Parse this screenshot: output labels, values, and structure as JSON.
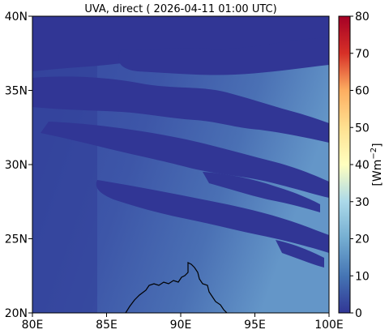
{
  "title": "UVA, direct ( 2026-04-11 01:00 UTC)",
  "map": {
    "lon_range": [
      80,
      100
    ],
    "lat_range": [
      20,
      40
    ],
    "x_ticks": [
      {
        "value": 80,
        "label": "80E"
      },
      {
        "value": 85,
        "label": "85E"
      },
      {
        "value": 90,
        "label": "90E"
      },
      {
        "value": 95,
        "label": "95E"
      },
      {
        "value": 100,
        "label": "100E"
      }
    ],
    "y_ticks": [
      {
        "value": 20,
        "label": "20N"
      },
      {
        "value": 25,
        "label": "25N"
      },
      {
        "value": 30,
        "label": "30N"
      },
      {
        "value": 35,
        "label": "35N"
      },
      {
        "value": 40,
        "label": "40N"
      }
    ],
    "colors": {
      "background_field": "#3a4ea0",
      "cloud_field": "#313695",
      "east_bright_field": "#5a88c0",
      "coastline": "#000000"
    }
  },
  "colorbar": {
    "label_base": "[Wm",
    "label_exp": "−2",
    "label_end": "]",
    "range": [
      0,
      80
    ],
    "ticks": [
      {
        "value": 0,
        "label": "0"
      },
      {
        "value": 10,
        "label": "10"
      },
      {
        "value": 20,
        "label": "20"
      },
      {
        "value": 30,
        "label": "30"
      },
      {
        "value": 40,
        "label": "40"
      },
      {
        "value": 50,
        "label": "50"
      },
      {
        "value": 60,
        "label": "60"
      },
      {
        "value": 70,
        "label": "70"
      },
      {
        "value": 80,
        "label": "80"
      }
    ],
    "stops": [
      {
        "value": 0,
        "color": "#313695"
      },
      {
        "value": 10,
        "color": "#4575b4"
      },
      {
        "value": 20,
        "color": "#74add1"
      },
      {
        "value": 30,
        "color": "#abd9e9"
      },
      {
        "value": 40,
        "color": "#ffffbf"
      },
      {
        "value": 50,
        "color": "#fee090"
      },
      {
        "value": 60,
        "color": "#fdae61"
      },
      {
        "value": 70,
        "color": "#d73027"
      },
      {
        "value": 80,
        "color": "#a50026"
      }
    ]
  }
}
